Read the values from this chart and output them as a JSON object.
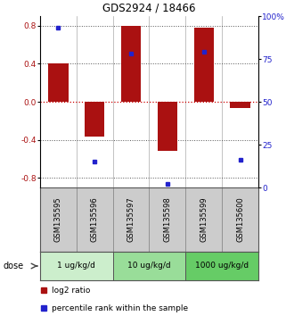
{
  "title": "GDS2924 / 18466",
  "samples": [
    "GSM135595",
    "GSM135596",
    "GSM135597",
    "GSM135598",
    "GSM135599",
    "GSM135600"
  ],
  "log2_ratio": [
    0.4,
    -0.37,
    0.8,
    -0.52,
    0.78,
    -0.07
  ],
  "percentile_rank": [
    93,
    15,
    78,
    2,
    79,
    16
  ],
  "bar_color": "#aa1111",
  "dot_color": "#2222cc",
  "ylim_left": [
    -0.9,
    0.9
  ],
  "ylim_right": [
    0,
    100
  ],
  "yticks_left": [
    -0.8,
    -0.4,
    0.0,
    0.4,
    0.8
  ],
  "yticks_right": [
    0,
    25,
    50,
    75,
    100
  ],
  "ytick_labels_right": [
    "0",
    "25",
    "50",
    "75",
    "100%"
  ],
  "dose_groups": [
    {
      "label": "1 ug/kg/d",
      "samples": [
        0,
        1
      ],
      "color": "#cceecc"
    },
    {
      "label": "10 ug/kg/d",
      "samples": [
        2,
        3
      ],
      "color": "#99dd99"
    },
    {
      "label": "1000 ug/kg/d",
      "samples": [
        4,
        5
      ],
      "color": "#66cc66"
    }
  ],
  "dose_label": "dose",
  "legend_log2": "log2 ratio",
  "legend_pct": "percentile rank within the sample",
  "hline_color_zero": "#cc0000",
  "hline_color_grid": "#555555",
  "background_color": "#ffffff",
  "sample_box_color": "#cccccc"
}
